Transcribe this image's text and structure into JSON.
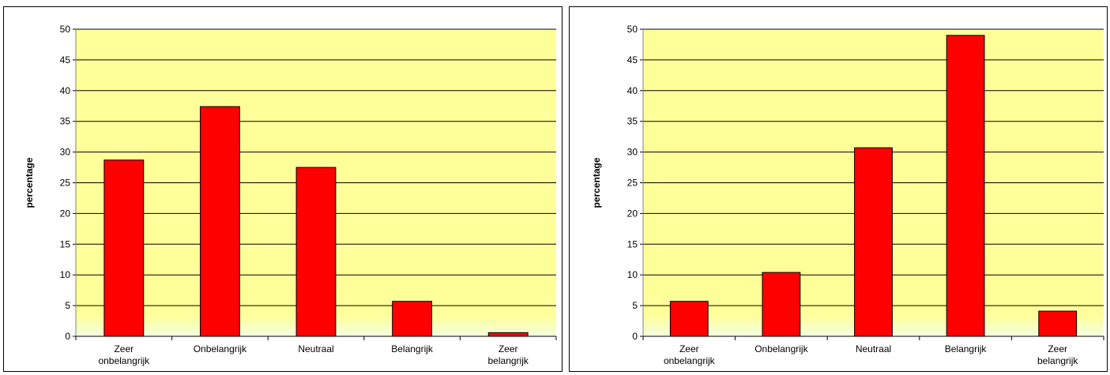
{
  "chart_data": [
    {
      "type": "bar",
      "title": "",
      "xlabel": "",
      "ylabel": "percentage",
      "ylim": [
        0,
        50
      ],
      "yticks": [
        0,
        5,
        10,
        15,
        20,
        25,
        30,
        35,
        40,
        45,
        50
      ],
      "categories": [
        [
          "Zeer",
          "onbelangrijk"
        ],
        [
          "Onbelangrijk"
        ],
        [
          "Neutraal"
        ],
        [
          "Belangrijk"
        ],
        [
          "Zeer",
          "belangrijk"
        ]
      ],
      "values": [
        28.7,
        37.4,
        27.5,
        5.7,
        0.6
      ],
      "grid": true,
      "legend": "none",
      "bar_color": "#ff0000",
      "plot_background": "#ffff99"
    },
    {
      "type": "bar",
      "title": "",
      "xlabel": "",
      "ylabel": "percentage",
      "ylim": [
        0,
        50
      ],
      "yticks": [
        0,
        5,
        10,
        15,
        20,
        25,
        30,
        35,
        40,
        45,
        50
      ],
      "categories": [
        [
          "Zeer",
          "onbelangrijk"
        ],
        [
          "Onbelangrijk"
        ],
        [
          "Neutraal"
        ],
        [
          "Belangrijk"
        ],
        [
          "Zeer",
          "belangrijk"
        ]
      ],
      "values": [
        5.7,
        10.4,
        30.7,
        49.0,
        4.1
      ],
      "grid": true,
      "legend": "none",
      "bar_color": "#ff0000",
      "plot_background": "#ffff99"
    }
  ]
}
